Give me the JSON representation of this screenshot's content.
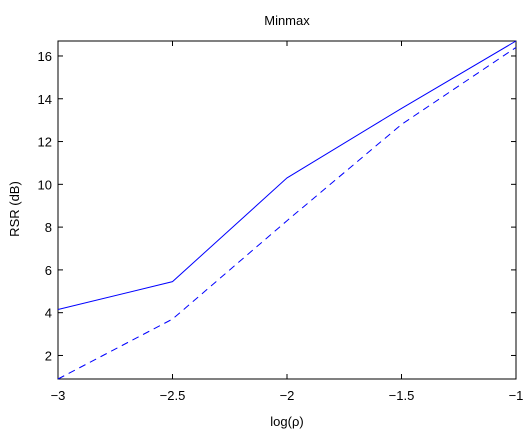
{
  "chart_data": {
    "type": "line",
    "title": "Minmax",
    "xlabel": "log(ρ)",
    "ylabel": "RSR (dB)",
    "xlim": [
      -3,
      -1
    ],
    "ylim": [
      0.9,
      16.7
    ],
    "xticks": [
      -3,
      -2.5,
      -2,
      -1.5,
      -1
    ],
    "xtick_labels": [
      "−3",
      "−2.5",
      "−2",
      "−1.5",
      "−1"
    ],
    "yticks": [
      2,
      4,
      6,
      8,
      10,
      12,
      14,
      16
    ],
    "ytick_labels": [
      "2",
      "4",
      "6",
      "8",
      "10",
      "12",
      "14",
      "16"
    ],
    "grid": false,
    "series": [
      {
        "style": "solid",
        "color": "#0000ff",
        "x": [
          -3,
          -2.5,
          -2,
          -1.5,
          -1
        ],
        "y": [
          4.15,
          5.45,
          10.3,
          13.55,
          16.7
        ]
      },
      {
        "style": "dashed",
        "color": "#0000ff",
        "x": [
          -3,
          -2.5,
          -2,
          -1.5,
          -1
        ],
        "y": [
          0.9,
          3.7,
          8.3,
          12.8,
          16.4
        ]
      }
    ]
  }
}
